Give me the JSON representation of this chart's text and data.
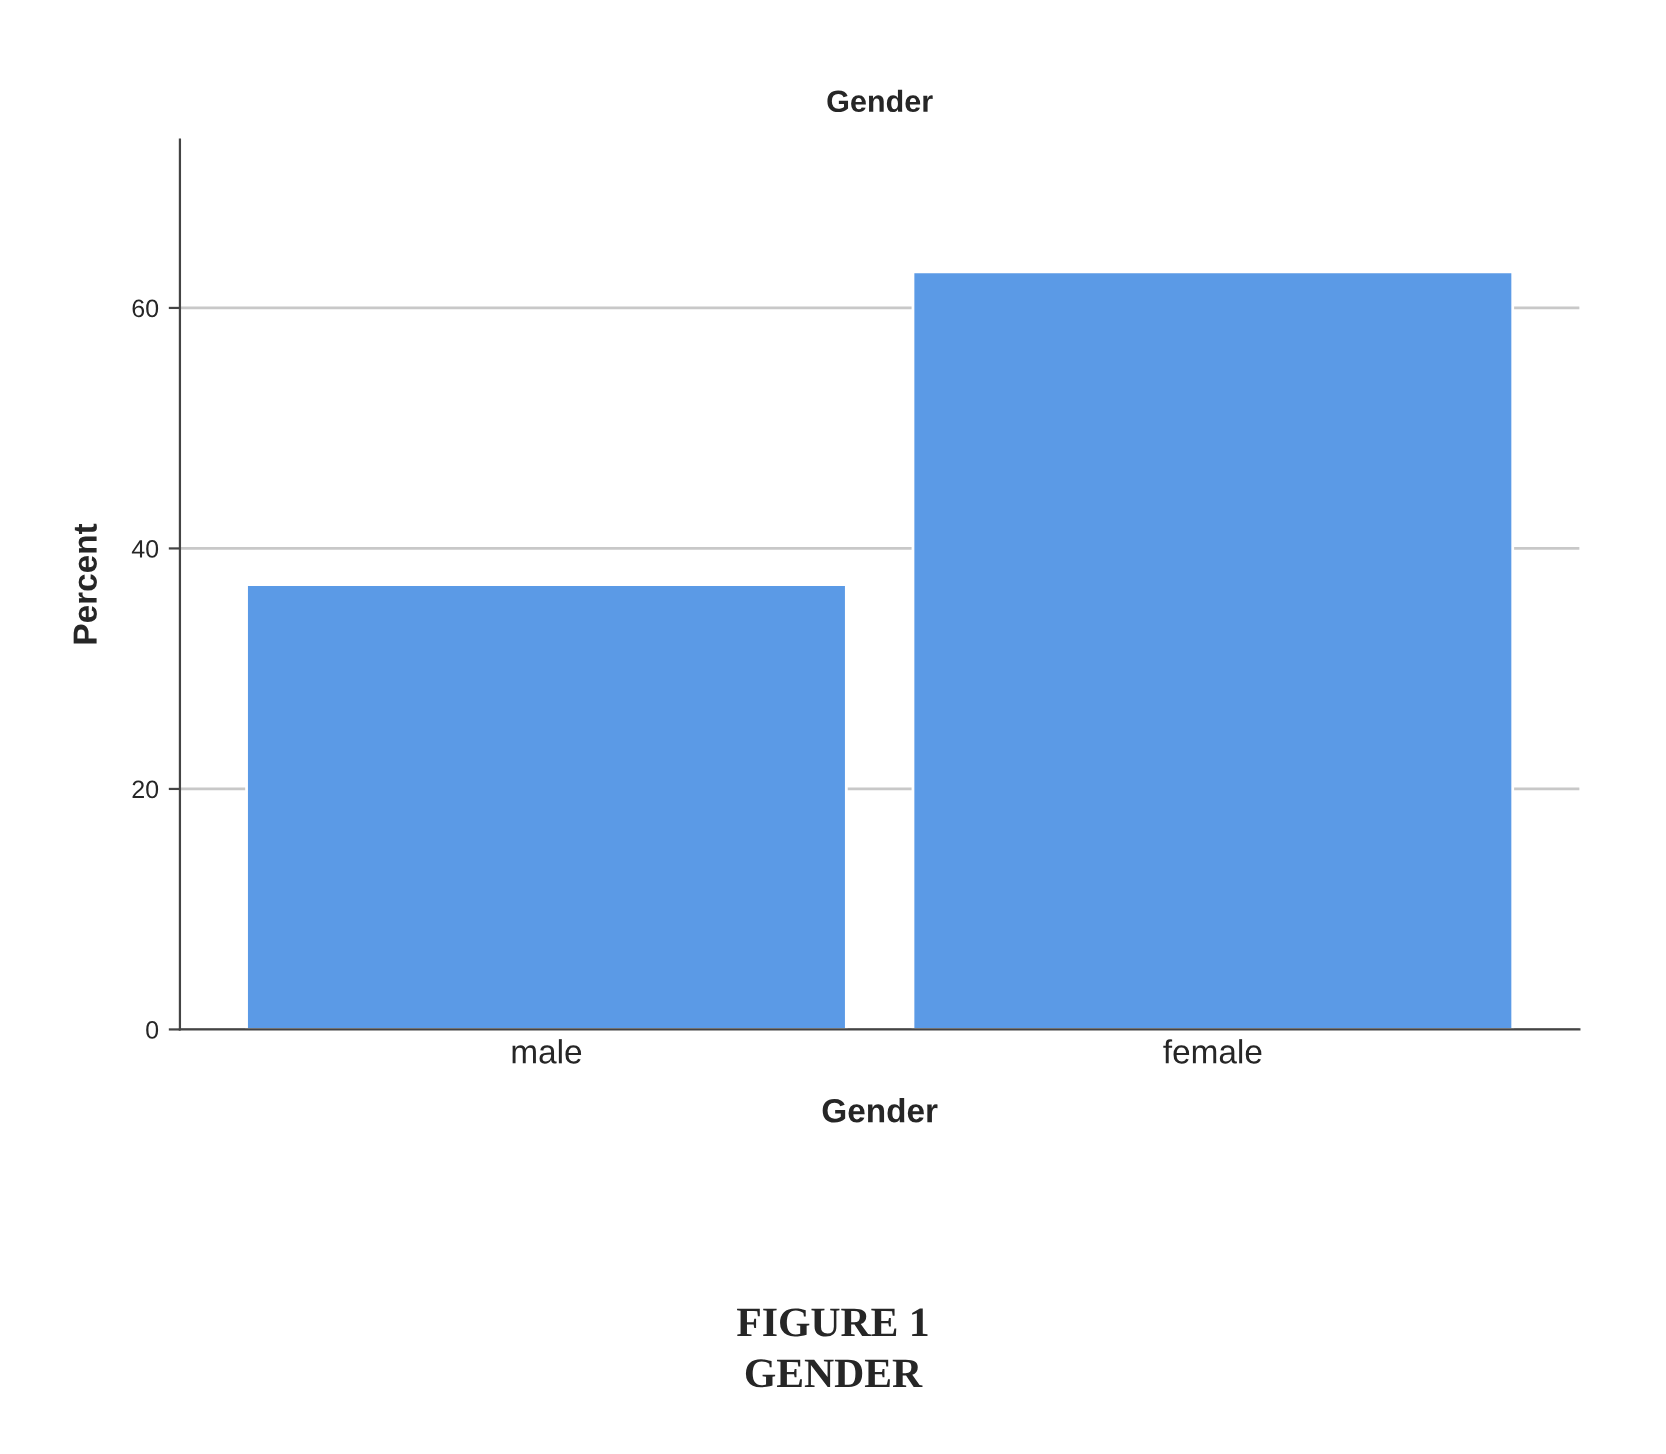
{
  "chart_data": {
    "type": "bar",
    "title": "Gender",
    "xlabel": "Gender",
    "ylabel": "Percent",
    "categories": [
      "male",
      "female"
    ],
    "values": [
      37,
      63
    ],
    "color": "#5b9ae6",
    "ylim": [
      0,
      74
    ],
    "yticks": [
      0,
      20,
      40,
      60
    ],
    "grid": "y",
    "annotations": [
      "FIGURE 1",
      "GENDER"
    ]
  }
}
